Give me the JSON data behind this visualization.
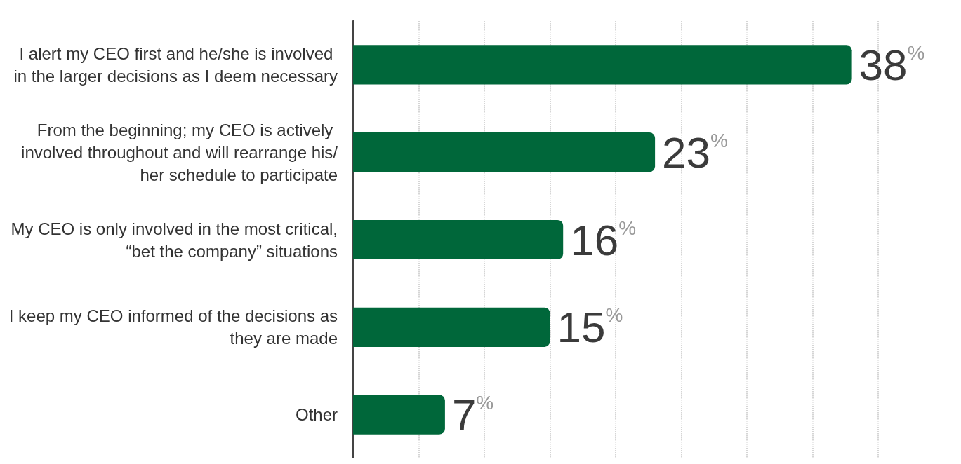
{
  "chart_data": {
    "type": "bar",
    "orientation": "horizontal",
    "categories": [
      "I alert my CEO first and he/she is involved in the larger decisions as I deem necessary",
      "From the beginning; my CEO is actively involved throughout and will rearrange his/her schedule to participate",
      "My CEO is only involved in the most critical, “bet the company” situations",
      "I keep my CEO informed of the decisions as they are made",
      "Other"
    ],
    "values": [
      38,
      23,
      16,
      15,
      7
    ],
    "value_labels": [
      "38%",
      "23%",
      "16%",
      "15%",
      "7%"
    ],
    "color": "#00673a",
    "xticks": [
      {
        "value": 0,
        "label": null
      },
      {
        "value": 5,
        "label": null
      },
      {
        "value": 10,
        "label": null
      },
      {
        "value": 15,
        "label": null
      },
      {
        "value": 20,
        "label": null
      },
      {
        "value": 25,
        "label": null
      },
      {
        "value": 30,
        "label": null
      },
      {
        "value": 35,
        "label": null
      },
      {
        "value": 40,
        "label": null
      }
    ],
    "grid": "x",
    "tick_labels": "y"
  }
}
